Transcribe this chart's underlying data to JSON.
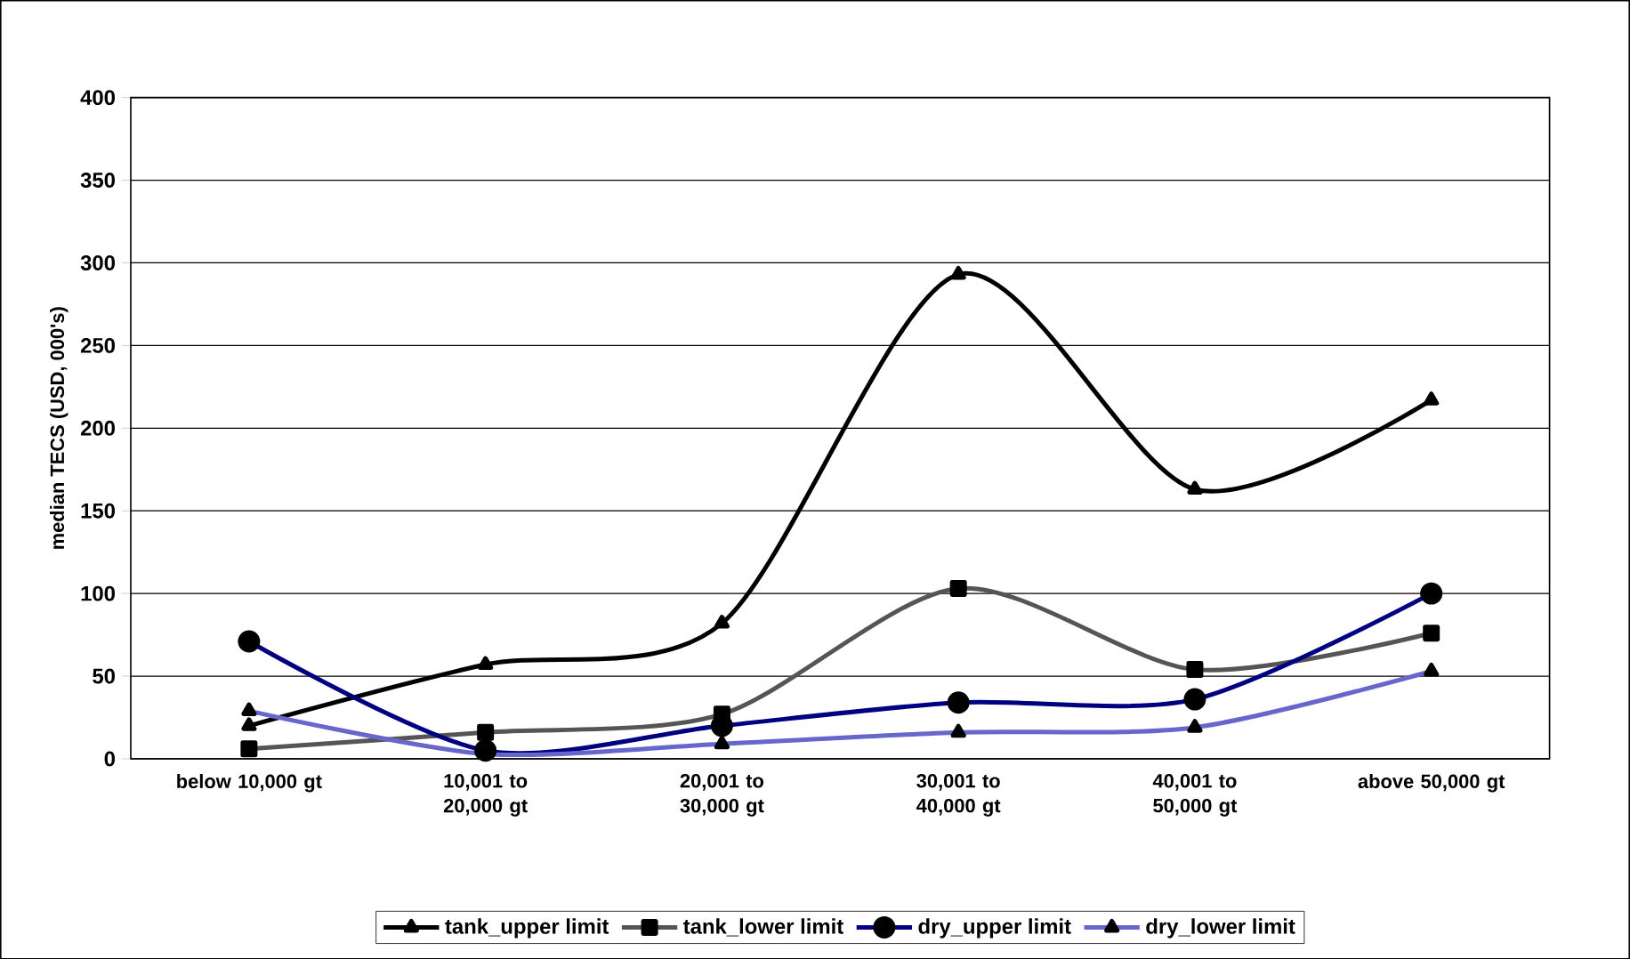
{
  "chart_data": {
    "type": "line",
    "ylabel": "median TECS (USD, 000's)",
    "categories": [
      "below 10,000 gt",
      "10,001 to 20,000 gt",
      "20,001 to 30,000 gt",
      "30,001 to 40,000 gt",
      "40,001 to 50,000 gt",
      "above 50,000 gt"
    ],
    "series": [
      {
        "name": "tank_upper limit",
        "color": "#000000",
        "marker": "triangle",
        "values": [
          20,
          57,
          82,
          293,
          163,
          217
        ]
      },
      {
        "name": "tank_lower limit",
        "color": "#555555",
        "marker": "square",
        "values": [
          6,
          16,
          27,
          103,
          54,
          76
        ]
      },
      {
        "name": "dry_upper limit",
        "color": "#000080",
        "marker": "circle",
        "values": [
          71,
          5,
          20,
          34,
          36,
          100
        ]
      },
      {
        "name": "dry_lower limit",
        "color": "#6666cc",
        "marker": "triangle",
        "values": [
          29,
          3,
          9,
          16,
          19,
          53
        ]
      }
    ],
    "ylim": [
      0,
      400
    ],
    "yticks": [
      0,
      50,
      100,
      150,
      200,
      250,
      300,
      350,
      400
    ],
    "grid": "y",
    "legend": "bottom"
  }
}
